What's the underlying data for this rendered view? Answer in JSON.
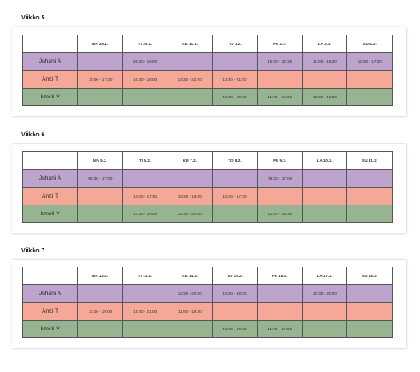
{
  "weeks": [
    {
      "title": "Viikko 5",
      "days": [
        "MA 29.1.",
        "TI 30.1.",
        "KE 31.1.",
        "TO 1.2.",
        "PE 2.2.",
        "LA 3.2.",
        "SU 4.2."
      ],
      "rows": [
        {
          "name": "Juhani A",
          "shifts": [
            "",
            "08:30 - 16:00",
            "",
            "",
            "15:00 - 22:30",
            "11:00 - 18:30",
            "10:00 - 17:30"
          ]
        },
        {
          "name": "Antti T",
          "shifts": [
            "10:00 - 17:30",
            "10:30 - 18:00",
            "14:30 - 22:00",
            "13:30 - 21:00",
            "",
            "",
            ""
          ]
        },
        {
          "name": "Irmeli V",
          "shifts": [
            "",
            "",
            "",
            "12:30 - 20:00",
            "11:00 - 18:30",
            "12:00 - 19:30",
            ""
          ]
        }
      ]
    },
    {
      "title": "Viikko 6",
      "days": [
        "MA 5.2.",
        "TI 6.2.",
        "KE 7.2.",
        "TO 8.2.",
        "PE 9.2.",
        "LA 10.2.",
        "SU 11.2."
      ],
      "rows": [
        {
          "name": "Juhani A",
          "shifts": [
            "09:30 - 17:00",
            "",
            "",
            "",
            "09:30 - 17:00",
            "",
            ""
          ]
        },
        {
          "name": "Antti T",
          "shifts": [
            "",
            "10:00 - 17:30",
            "10:30 - 18:00",
            "10:00 - 17:30",
            "",
            "",
            ""
          ]
        },
        {
          "name": "Irmeli V",
          "shifts": [
            "",
            "12:30 - 20:00",
            "12:30 - 20:00",
            "",
            "12:00 - 19:30",
            "",
            ""
          ]
        }
      ]
    },
    {
      "title": "Viikko 7",
      "days": [
        "MA 12.2.",
        "TI 13.2.",
        "KE 14.2.",
        "TO 15.2.",
        "PE 16.2.",
        "LA 17.2.",
        "SU 18.2."
      ],
      "rows": [
        {
          "name": "Juhani A",
          "shifts": [
            "",
            "",
            "12:30 - 20:00",
            "10:30 - 18:00",
            "",
            "12:30 - 20:00",
            ""
          ]
        },
        {
          "name": "Antti T",
          "shifts": [
            "11:30 - 19:00",
            "13:30 - 21:00",
            "11:00 - 18:30",
            "",
            "",
            "",
            ""
          ]
        },
        {
          "name": "Irmeli V",
          "shifts": [
            "",
            "",
            "",
            "12:00 - 19:30",
            "11:30 - 19:00",
            "",
            ""
          ]
        }
      ]
    }
  ]
}
